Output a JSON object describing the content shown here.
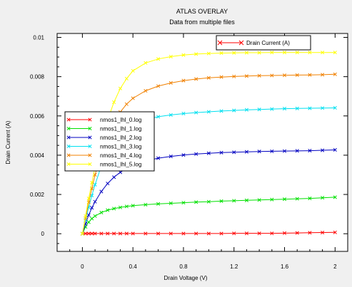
{
  "chart_data": {
    "type": "line",
    "title": "ATLAS OVERLAY",
    "subtitle": "Data from multiple files",
    "xlabel": "Drain Voltage (V)",
    "ylabel": "Drain Current (A)",
    "xlim": [
      -0.2,
      2.1
    ],
    "ylim": [
      -0.0009,
      0.0102
    ],
    "x_ticks": [
      0,
      0.4,
      0.8,
      1.2,
      1.6,
      2
    ],
    "x_tick_labels": [
      "0",
      "0.4",
      "0.8",
      "1.2",
      "1.6",
      "2"
    ],
    "y_ticks": [
      0,
      0.002,
      0.004,
      0.006,
      0.008,
      0.01
    ],
    "y_tick_labels": [
      "0",
      "0.002",
      "0.004",
      "0.006",
      "0.008",
      "0.01"
    ],
    "grid": false,
    "marker": "x",
    "x": [
      0,
      0.025,
      0.05,
      0.075,
      0.1,
      0.15,
      0.2,
      0.25,
      0.3,
      0.35,
      0.4,
      0.5,
      0.6,
      0.7,
      0.8,
      0.9,
      1.0,
      1.1,
      1.2,
      1.3,
      1.4,
      1.5,
      1.6,
      1.7,
      1.8,
      1.9,
      2.0
    ],
    "series": [
      {
        "name": "nmos1_lhl_0.log",
        "color": "#ff0000",
        "values": [
          0,
          1e-05,
          1e-05,
          1e-05,
          1e-05,
          1e-05,
          1e-05,
          1e-05,
          1e-05,
          1e-05,
          1e-05,
          1e-05,
          1e-05,
          1e-05,
          1e-05,
          1e-05,
          1e-05,
          1e-05,
          2e-05,
          2e-05,
          2e-05,
          2e-05,
          3e-05,
          4e-05,
          5e-05,
          6e-05,
          7e-05
        ]
      },
      {
        "name": "nmos1_lhl_1.log",
        "color": "#00e000",
        "values": [
          0,
          0.00035,
          0.00059,
          0.00077,
          0.0009,
          0.00108,
          0.0012,
          0.00128,
          0.00134,
          0.00139,
          0.00143,
          0.00148,
          0.00152,
          0.00155,
          0.00158,
          0.00161,
          0.00163,
          0.00166,
          0.00168,
          0.0017,
          0.00172,
          0.00174,
          0.00176,
          0.00178,
          0.0018,
          0.00183,
          0.00186
        ]
      },
      {
        "name": "nmos1_lhl_2.log",
        "color": "#0000c0",
        "values": [
          0,
          0.0005,
          0.00095,
          0.00132,
          0.00163,
          0.00215,
          0.00256,
          0.00288,
          0.00313,
          0.00333,
          0.00349,
          0.00371,
          0.00385,
          0.00394,
          0.00401,
          0.00406,
          0.0041,
          0.00413,
          0.00415,
          0.00417,
          0.00419,
          0.0042,
          0.00421,
          0.00422,
          0.00423,
          0.00425,
          0.00427
        ]
      },
      {
        "name": "nmos1_lhl_3.log",
        "color": "#00e0f0",
        "values": [
          0,
          0.0007,
          0.00135,
          0.00195,
          0.0025,
          0.00345,
          0.0042,
          0.00475,
          0.00515,
          0.00542,
          0.0056,
          0.00582,
          0.00596,
          0.00605,
          0.00612,
          0.00617,
          0.00621,
          0.00625,
          0.00628,
          0.00631,
          0.00633,
          0.00635,
          0.00637,
          0.00638,
          0.00639,
          0.0064,
          0.00641
        ]
      },
      {
        "name": "nmos1_lhl_4.log",
        "color": "#f08000",
        "values": [
          0,
          0.0008,
          0.0016,
          0.0023,
          0.003,
          0.0041,
          0.005,
          0.0057,
          0.0062,
          0.0066,
          0.0069,
          0.00728,
          0.00752,
          0.00768,
          0.0078,
          0.00788,
          0.00794,
          0.00798,
          0.00801,
          0.00803,
          0.00805,
          0.00806,
          0.00807,
          0.00808,
          0.00809,
          0.0081,
          0.00812
        ]
      },
      {
        "name": "nmos1_lhl_5.log",
        "color": "#ffff00",
        "values": [
          0,
          0.0009,
          0.0018,
          0.0026,
          0.0034,
          0.0047,
          0.0058,
          0.0067,
          0.0074,
          0.0079,
          0.0083,
          0.0087,
          0.0089,
          0.00902,
          0.0091,
          0.00915,
          0.00918,
          0.0092,
          0.00921,
          0.00922,
          0.00922,
          0.00923,
          0.00923,
          0.00923,
          0.00923,
          0.00923,
          0.00923
        ]
      }
    ],
    "legend": {
      "placement": "center-left",
      "entries": [
        "nmos1_lhl_0.log",
        "nmos1_lhl_1.log",
        "nmos1_lhl_2.log",
        "nmos1_lhl_3.log",
        "nmos1_lhl_4.log",
        "nmos1_lhl_5.log"
      ]
    },
    "quantity_legend": {
      "placement": "top-right",
      "label": "Drain Current (A)",
      "color": "#ff0000"
    }
  }
}
